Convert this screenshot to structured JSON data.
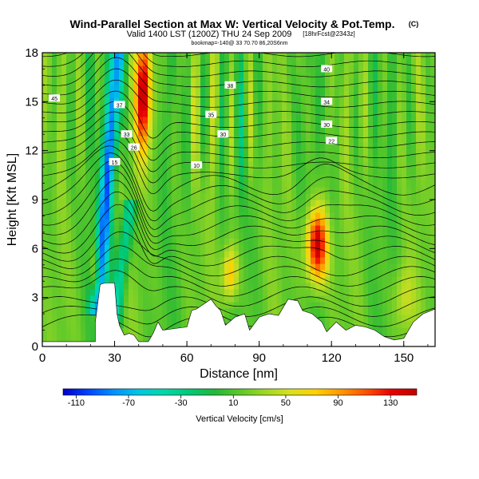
{
  "chart_data": {
    "type": "heatmap",
    "title": "Wind-Parallel Section at Max W: Vertical Velocity & Pot.Temp.",
    "title_mark": "(C)",
    "subtitle": "Valid 1400 LST (1200Z) THU 24 Sep 2009",
    "subtitle_note": "[18hrFcst@2343z]",
    "subtitle2": "bookmap=-140@ 33 70.70 86,20S6nm",
    "xlabel": "Distance [nm]",
    "ylabel": "Height [Kft MSL]",
    "xlim": [
      0,
      163
    ],
    "ylim": [
      0,
      18
    ],
    "xticks": [
      "0",
      "30",
      "60",
      "90",
      "120",
      "150"
    ],
    "yticks": [
      "0",
      "3",
      "6",
      "9",
      "12",
      "15",
      "18"
    ],
    "colorbar": {
      "label": "Vertical Velocity [cm/s]",
      "ticks": [
        "-110",
        "-70",
        "-30",
        "10",
        "50",
        "90",
        "130"
      ],
      "min": -120,
      "max": 150,
      "colors": [
        "#0000cc",
        "#0044ff",
        "#0090ff",
        "#00c8e0",
        "#00d8a8",
        "#00c878",
        "#22b838",
        "#5cc82a",
        "#9ed824",
        "#d8e020",
        "#ffd000",
        "#ff9800",
        "#ff5000",
        "#e80000",
        "#c00000"
      ]
    },
    "field_features": [
      {
        "name": "downdraft",
        "x": 27,
        "z0": 3,
        "z1": 18,
        "w": -100
      },
      {
        "name": "updraft",
        "x": 42,
        "z0": 12,
        "z1": 18,
        "w": 140
      },
      {
        "name": "updraft",
        "x": 114,
        "z0": 4,
        "z1": 9,
        "w": 140
      },
      {
        "name": "updraft",
        "x": 78,
        "z0": 3,
        "z1": 7,
        "w": 80
      }
    ],
    "contour_labels": [
      "45",
      "40",
      "38",
      "34",
      "37",
      "35",
      "33",
      "30",
      "30",
      "26",
      "22",
      "15",
      "10"
    ],
    "terrain": {
      "x": [
        0,
        22,
        22,
        24,
        26,
        30,
        31,
        32,
        34,
        36,
        38,
        40,
        44,
        46,
        48,
        50,
        55,
        60,
        62,
        64,
        68,
        70,
        72,
        74,
        76,
        80,
        84,
        86,
        90,
        94,
        98,
        102,
        106,
        108,
        112,
        116,
        118,
        122,
        126,
        130,
        134,
        138,
        142,
        146,
        150,
        154,
        158,
        163
      ],
      "z": [
        0.3,
        0.3,
        1.5,
        3.8,
        3.9,
        3.9,
        2.0,
        1.3,
        0.7,
        0.8,
        0.7,
        0.3,
        0.3,
        0.8,
        1.5,
        1.0,
        1.1,
        1.2,
        2.2,
        2.3,
        2.7,
        2.9,
        2.5,
        2.2,
        1.3,
        1.8,
        2.0,
        1.0,
        1.8,
        2.0,
        1.9,
        2.9,
        2.8,
        2.2,
        2.0,
        1.5,
        0.9,
        1.5,
        1.0,
        1.3,
        1.2,
        1.0,
        0.6,
        0.4,
        0.5,
        1.5,
        2.0,
        2.3
      ]
    }
  }
}
